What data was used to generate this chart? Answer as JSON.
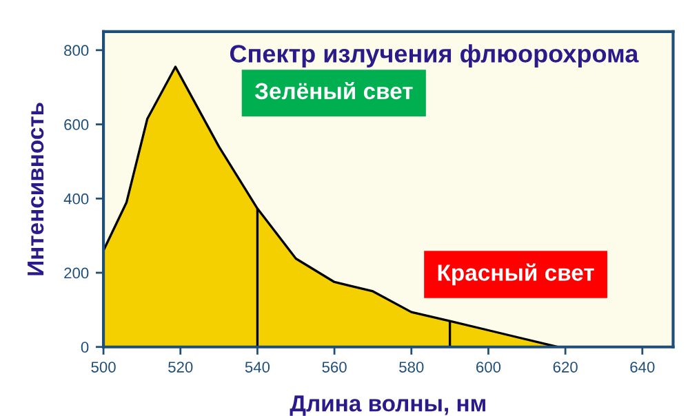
{
  "chart_data": {
    "type": "area",
    "title": "Спектр излучения флюорохрома",
    "xlabel": "Длина волны, нм",
    "ylabel": "Интенсивность",
    "series": [
      {
        "x": [
          500,
          506,
          511.4,
          518.7,
          530,
          540,
          550,
          560,
          570,
          580,
          590,
          600,
          618,
          620
        ],
        "values": [
          260,
          390,
          615,
          755,
          540,
          373,
          238,
          175,
          150,
          94,
          70,
          45,
          0,
          0
        ],
        "color": "#f5d000"
      }
    ],
    "ref_lines": [
      {
        "axis": "x",
        "value": 540,
        "color": "#000000"
      },
      {
        "axis": "x",
        "value": 590,
        "color": "#000000"
      }
    ],
    "annotations": [
      "Зелёный свет",
      "Красный свет"
    ],
    "xlim": [
      500,
      648
    ],
    "xticks": [
      500,
      520,
      540,
      560,
      580,
      600,
      620,
      640
    ],
    "ylim": [
      0,
      850
    ],
    "yticks": [
      0,
      200,
      400,
      600,
      800
    ],
    "grid": false,
    "legend": false
  }
}
